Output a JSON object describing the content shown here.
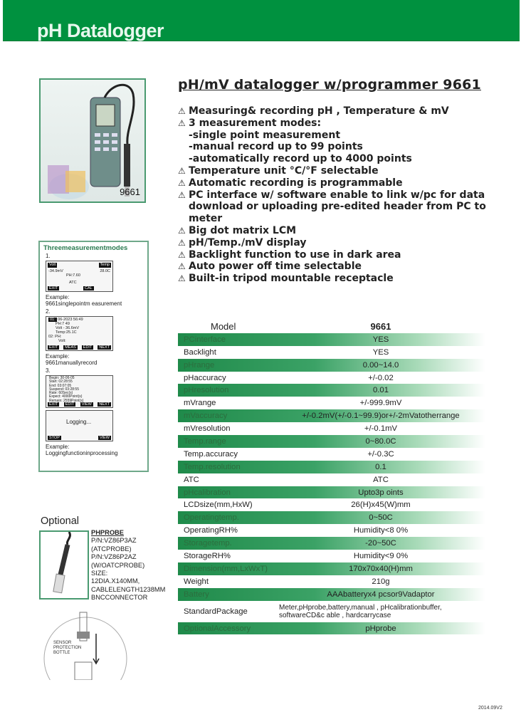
{
  "header": {
    "title": "pH Datalogger"
  },
  "product": {
    "model_label": "9661",
    "title": "pH/mV datalogger w/programmer 9661"
  },
  "features": [
    {
      "text": "Measuring& recording pH , Temperature & mV",
      "bullet": true
    },
    {
      "text": "3 measurement modes:",
      "bullet": true
    },
    {
      "text": "-single point measurement",
      "bullet": false
    },
    {
      "text": "-manual record up to 99 points",
      "bullet": false
    },
    {
      "text": "-automatically record up to 4000 points",
      "bullet": false
    },
    {
      "text": "Temperature unit °C/°F selectable",
      "bullet": true
    },
    {
      "text": "Automatic recording is programmable",
      "bullet": true
    },
    {
      "text": "PC interface w/ software enable to link w/pc for data",
      "bullet": true
    },
    {
      "text": "download or uploading pre-edited header from PC to",
      "bullet": false
    },
    {
      "text": "meter",
      "bullet": false
    },
    {
      "text": "Big dot matrix LCM",
      "bullet": true
    },
    {
      "text": "pH/Temp./mV display",
      "bullet": true
    },
    {
      "text": "Backlight function to use in dark area",
      "bullet": true
    },
    {
      "text": "Auto power off time selectable",
      "bullet": true
    },
    {
      "text": "Built-in tripod mountable receptacle",
      "bullet": true
    }
  ],
  "bullet_icon": "warning-triangle-icon",
  "modes": {
    "title": "Threemeasurementmodes",
    "m1": {
      "num": "1.",
      "k1": "Volt",
      "k2": "Temp",
      "l1a": "-34.9mV",
      "l1b": "28.0C",
      "l2": "PH:7.60",
      "l3": "ATC",
      "b1": "EXIT",
      "b2": "CAL",
      "ex1": "Example:",
      "ex2": "9661singlepointm      easurement"
    },
    "m2": {
      "num": "2.",
      "k1": "01:",
      "l1": "06-2023 56:49",
      "l2": "PH:7    49",
      "l3": "Volt -   36.6mV",
      "l4": "Temp:25.1C",
      "l5": "02:  PH:",
      "l6": "Volt:",
      "b1": "EXIT",
      "b2": "MEAS",
      "b3": "EDIT",
      "b4": "NEXT",
      "ex1": "Example:",
      "ex2": "9661manuallyrecord"
    },
    "m3": {
      "num": "3.",
      "lines": [
        "Begin:      30-06-05",
        "Start:       02:28:55",
        "End:         03:07:05",
        "Suspend:  03:28:55",
        "Rate:        60Sec(s)",
        "Expect:     4000Point(s)",
        "Remain:    2559Point(s)"
      ],
      "b1": "EXIT",
      "b2": "EDIT",
      "b3": "VIEW",
      "b4": "NEXT",
      "logging": "Logging...",
      "b5": "STOP",
      "b6": "VIEW",
      "ex1": "Example:",
      "ex2": "Loggingfunctioninprocessing"
    }
  },
  "spec_table": {
    "header": {
      "label": "Model",
      "value": "9661"
    },
    "rows": [
      {
        "label": "PCinterface",
        "value": "YES"
      },
      {
        "label": "Backlight",
        "value": "YES"
      },
      {
        "label": "pHrange",
        "value": "0.00~14.0"
      },
      {
        "label": "pHaccuracy",
        "value": "+/-0.02"
      },
      {
        "label": "pHresolution",
        "value": "0.01"
      },
      {
        "label": "mVrange",
        "value": "+/-999.9mV"
      },
      {
        "label": "mVaccuracy",
        "value": "+/-0.2mV(+/-0.1~99.9)or+/-2mVatotherrange"
      },
      {
        "label": "mVresolution",
        "value": "+/-0.1mV"
      },
      {
        "label": "Temp.range",
        "value": "0~80.0C"
      },
      {
        "label": "Temp.accuracy",
        "value": "+/-0.3C"
      },
      {
        "label": "Temp.resolution",
        "value": "0.1"
      },
      {
        "label": "ATC",
        "value": "ATC"
      },
      {
        "label": "pHcalibration",
        "value": "Upto3p    oints"
      },
      {
        "label": "LCDsize(mm,HxW)",
        "value": "26(H)x45(W)mm"
      },
      {
        "label": "Operatingtemp.",
        "value": "0~50C"
      },
      {
        "label": "OperatingRH%",
        "value": "Humidity<8    0%"
      },
      {
        "label": "Storagetemp.",
        "value": "-20~50C"
      },
      {
        "label": "StorageRH%",
        "value": "Humidity<9    0%"
      },
      {
        "label": "Dimension(mm,LxWxT)",
        "value": "170x70x40(H)mm"
      },
      {
        "label": "Weight",
        "value": "210g"
      },
      {
        "label": "Battery",
        "value": "AAAbatteryx4    pcsor9Vadaptor"
      },
      {
        "label": "StandardPackage",
        "value1": "Meter,pHprobe,battery,manual , pHcalibrationbuffer,",
        "value2": "softwareCD&c     able , hardcarrycase"
      },
      {
        "label": "OptionalAccessory",
        "value": "pHprobe"
      }
    ]
  },
  "optional": {
    "title": "Optional",
    "probe_title": "PHPROBE",
    "lines": [
      "P/N:VZ86P3AZ",
      "(ATCPROBE)",
      "P/N:VZ86P2AZ",
      "(W/OATCPROBE)",
      "SIZE:",
      "12DIA.X140MM,",
      "CABLELENGTH1238MM",
      "BNCCONNECTOR"
    ],
    "bottle_label": [
      "SENSOR",
      "PROTECTION",
      "BOTTLE"
    ]
  },
  "footer": {
    "version": "2014.09V2"
  },
  "colors": {
    "brand_green": "#00913f",
    "row_green": "#1f8a4a"
  }
}
